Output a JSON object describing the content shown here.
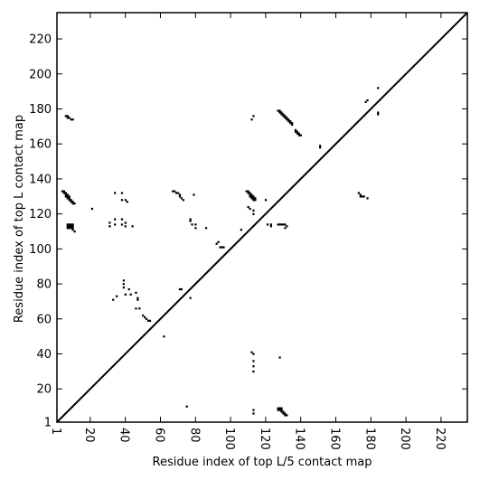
{
  "chart_data": {
    "type": "scatter",
    "title": "",
    "xlabel": "Residue index of top L/5 contact map",
    "ylabel": "Residue index of top L contact map",
    "xlim": [
      1,
      235
    ],
    "ylim": [
      1,
      235
    ],
    "x_ticks": [
      1,
      20,
      40,
      60,
      80,
      100,
      120,
      140,
      160,
      180,
      200,
      220
    ],
    "y_ticks": [
      1,
      20,
      40,
      60,
      80,
      100,
      120,
      140,
      160,
      180,
      200,
      220
    ],
    "diagonal": true,
    "grid": false,
    "legend": "none",
    "marker_color": "#000000",
    "lower_triangle_points": [
      [
        75,
        10
      ],
      [
        113,
        6
      ],
      [
        113,
        8
      ],
      [
        127,
        8
      ],
      [
        127,
        9
      ],
      [
        128,
        8
      ],
      [
        128,
        9
      ],
      [
        129,
        7
      ],
      [
        129,
        8
      ],
      [
        129,
        9
      ],
      [
        130,
        6
      ],
      [
        130,
        7
      ],
      [
        131,
        6
      ],
      [
        131,
        5
      ],
      [
        132,
        5
      ],
      [
        128,
        38
      ],
      [
        112,
        41
      ],
      [
        113,
        40
      ],
      [
        113,
        36
      ],
      [
        113,
        33
      ],
      [
        113,
        30
      ],
      [
        62,
        50
      ],
      [
        46,
        66
      ],
      [
        48,
        66
      ],
      [
        47,
        71
      ],
      [
        47,
        72
      ],
      [
        50,
        62
      ],
      [
        51,
        61
      ],
      [
        52,
        60
      ],
      [
        53,
        59
      ],
      [
        54,
        59
      ],
      [
        43,
        74
      ],
      [
        46,
        75
      ],
      [
        42,
        77
      ],
      [
        71,
        77
      ],
      [
        72,
        77
      ],
      [
        39,
        78
      ],
      [
        39,
        80
      ],
      [
        39,
        82
      ],
      [
        40,
        74
      ],
      [
        33,
        71
      ],
      [
        35,
        73
      ],
      [
        77,
        72
      ],
      [
        92,
        103
      ],
      [
        93,
        104
      ],
      [
        94,
        101
      ],
      [
        95,
        101
      ],
      [
        96,
        101
      ],
      [
        106,
        111
      ],
      [
        121,
        114
      ],
      [
        123,
        114
      ],
      [
        123,
        113
      ],
      [
        127,
        114
      ],
      [
        128,
        114
      ],
      [
        129,
        114
      ],
      [
        130,
        114
      ],
      [
        131,
        114
      ],
      [
        131,
        112
      ],
      [
        132,
        113
      ]
    ],
    "upper_triangle_points": [
      [
        4,
        133
      ],
      [
        5,
        133
      ],
      [
        5,
        132
      ],
      [
        6,
        132
      ],
      [
        6,
        131
      ],
      [
        7,
        131
      ],
      [
        7,
        130
      ],
      [
        8,
        130
      ],
      [
        8,
        129
      ],
      [
        9,
        128
      ],
      [
        9,
        127
      ],
      [
        10,
        127
      ],
      [
        10,
        126
      ],
      [
        11,
        126
      ],
      [
        6,
        130
      ],
      [
        7,
        129
      ],
      [
        8,
        128
      ],
      [
        7,
        114
      ],
      [
        8,
        114
      ],
      [
        9,
        114
      ],
      [
        10,
        114
      ],
      [
        7,
        113
      ],
      [
        8,
        113
      ],
      [
        9,
        113
      ],
      [
        10,
        113
      ],
      [
        7,
        112
      ],
      [
        8,
        112
      ],
      [
        9,
        112
      ],
      [
        10,
        112
      ],
      [
        10,
        111
      ],
      [
        11,
        110
      ],
      [
        6,
        176
      ],
      [
        7,
        176
      ],
      [
        7,
        175
      ],
      [
        8,
        175
      ],
      [
        9,
        174
      ],
      [
        10,
        174
      ],
      [
        21,
        123
      ],
      [
        31,
        113
      ],
      [
        31,
        115
      ],
      [
        34,
        114
      ],
      [
        34,
        117
      ],
      [
        38,
        117
      ],
      [
        38,
        114
      ],
      [
        40,
        113
      ],
      [
        40,
        115
      ],
      [
        44,
        113
      ],
      [
        34,
        132
      ],
      [
        38,
        132
      ],
      [
        38,
        128
      ],
      [
        40,
        128
      ],
      [
        41,
        127
      ],
      [
        67,
        133
      ],
      [
        68,
        133
      ],
      [
        69,
        132
      ],
      [
        70,
        132
      ],
      [
        71,
        131
      ],
      [
        71,
        130
      ],
      [
        72,
        129
      ],
      [
        73,
        128
      ],
      [
        79,
        131
      ],
      [
        77,
        117
      ],
      [
        77,
        116
      ],
      [
        78,
        114
      ],
      [
        80,
        114
      ],
      [
        80,
        112
      ],
      [
        86,
        112
      ],
      [
        109,
        133
      ],
      [
        110,
        133
      ],
      [
        110,
        132
      ],
      [
        111,
        132
      ],
      [
        111,
        131
      ],
      [
        112,
        131
      ],
      [
        112,
        130
      ],
      [
        113,
        130
      ],
      [
        113,
        129
      ],
      [
        114,
        129
      ],
      [
        114,
        128
      ],
      [
        111,
        130
      ],
      [
        112,
        129
      ],
      [
        113,
        128
      ],
      [
        110,
        124
      ],
      [
        111,
        123
      ],
      [
        113,
        122
      ],
      [
        113,
        120
      ],
      [
        120,
        128
      ],
      [
        112,
        174
      ],
      [
        113,
        176
      ],
      [
        127,
        179
      ],
      [
        128,
        179
      ],
      [
        128,
        178
      ],
      [
        129,
        178
      ],
      [
        129,
        177
      ],
      [
        130,
        177
      ],
      [
        130,
        176
      ],
      [
        131,
        176
      ],
      [
        131,
        175
      ],
      [
        132,
        175
      ],
      [
        132,
        174
      ],
      [
        133,
        174
      ],
      [
        133,
        173
      ],
      [
        134,
        173
      ],
      [
        134,
        172
      ],
      [
        135,
        172
      ],
      [
        135,
        171
      ],
      [
        137,
        168
      ],
      [
        137,
        167
      ],
      [
        138,
        167
      ],
      [
        138,
        166
      ],
      [
        139,
        166
      ],
      [
        139,
        165
      ],
      [
        140,
        165
      ],
      [
        151,
        159
      ],
      [
        151,
        158
      ],
      [
        173,
        132
      ],
      [
        174,
        131
      ],
      [
        174,
        130
      ],
      [
        175,
        130
      ],
      [
        176,
        130
      ],
      [
        178,
        129
      ],
      [
        177,
        184
      ],
      [
        178,
        185
      ],
      [
        184,
        192
      ],
      [
        184,
        178
      ],
      [
        184,
        177
      ]
    ]
  }
}
